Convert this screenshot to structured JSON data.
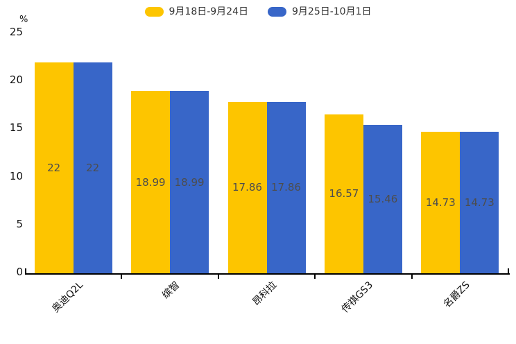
{
  "chart_data": {
    "type": "bar",
    "title": "",
    "categories": [
      "奥迪Q2L",
      "缤智",
      "昂科拉",
      "传祺GS3",
      "名爵ZS"
    ],
    "series": [
      {
        "name": "9月18日-9月24日",
        "color": "#fdc500",
        "values": [
          22,
          18.99,
          17.86,
          16.57,
          14.73
        ]
      },
      {
        "name": "9月25日-10月1日",
        "color": "#3866c8",
        "values": [
          22,
          18.99,
          17.86,
          15.46,
          14.73
        ]
      }
    ],
    "xlabel": "",
    "ylabel": "%",
    "ylim": [
      0,
      25
    ],
    "yticks": [
      0,
      5,
      10,
      15,
      20,
      25
    ],
    "grid": false,
    "legend_position": "top-center",
    "value_labels_shown": true,
    "value_label_color": "#4d4d4d",
    "axis_color": "#000000",
    "tick_label_color": "#111111"
  }
}
